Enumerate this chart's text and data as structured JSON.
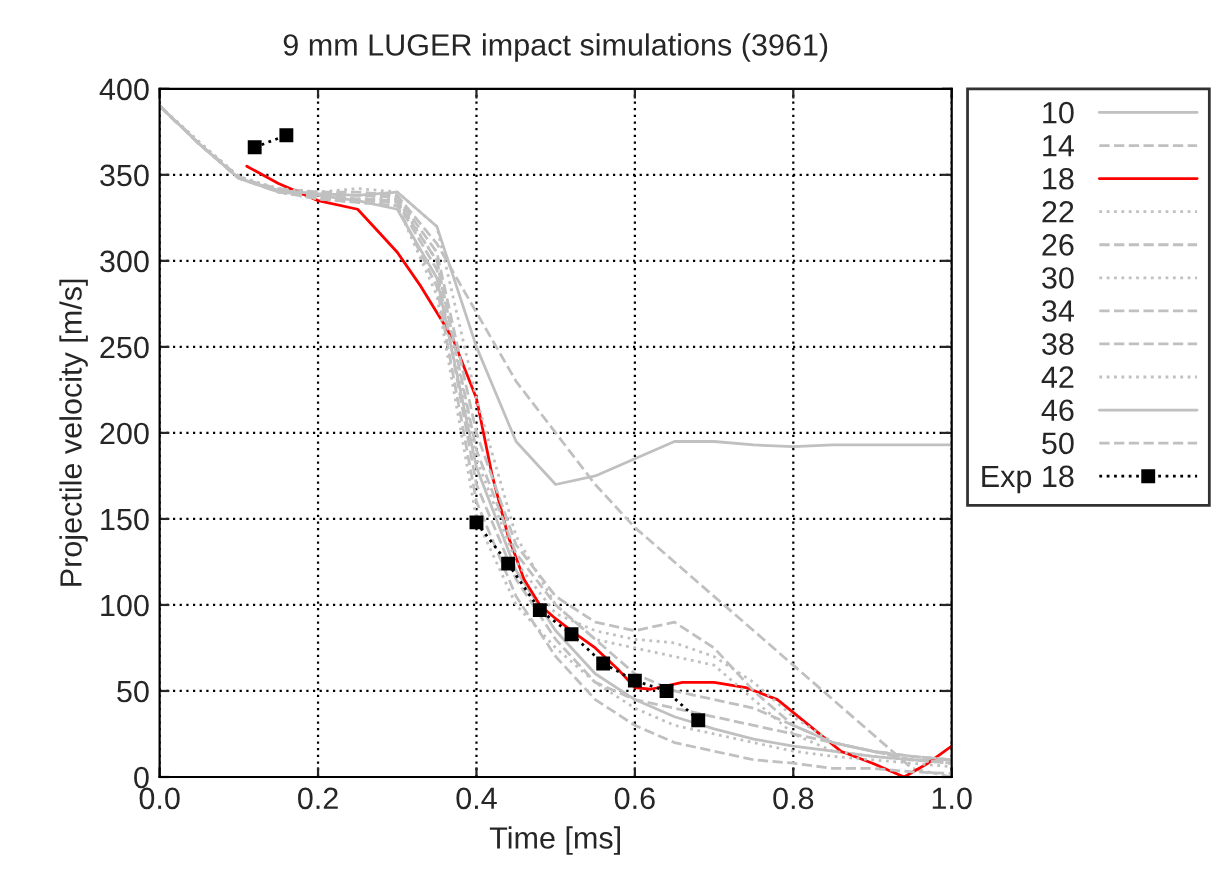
{
  "chart_data": {
    "type": "line",
    "title": "9 mm LUGER impact simulations (3961)",
    "xlabel": "Time [ms]",
    "ylabel": "Projectile velocity [m/s]",
    "xlim": [
      0,
      1
    ],
    "ylim": [
      0,
      400
    ],
    "xticks": [
      {
        "value": 0,
        "label": "0.0"
      },
      0.2,
      0.4,
      0.6,
      0.8,
      {
        "value": 1,
        "label": "1.0"
      }
    ],
    "yticks": [
      0,
      50,
      100,
      150,
      200,
      250,
      300,
      350,
      400
    ],
    "grid": true,
    "legend": "right",
    "x": [
      0,
      0.05,
      0.1,
      0.15,
      0.2,
      0.25,
      0.3,
      0.35,
      0.4,
      0.45,
      0.5,
      0.55,
      0.6,
      0.65,
      0.7,
      0.75,
      0.8,
      0.85,
      0.9,
      0.95,
      1.0
    ],
    "series": [
      {
        "name": "10",
        "color": "#c0c0c0",
        "line_style": "solid",
        "values": [
          390,
          368,
          348,
          340,
          338,
          335,
          330,
          290,
          180,
          120,
          85,
          60,
          45,
          35,
          28,
          22,
          18,
          15,
          12,
          10,
          10
        ]
      },
      {
        "name": "14",
        "color": "#c0c0c0",
        "line_style": "dashed",
        "values": [
          390,
          368,
          348,
          342,
          340,
          340,
          338,
          310,
          270,
          230,
          200,
          170,
          145,
          125,
          105,
          85,
          65,
          45,
          25,
          5,
          0
        ]
      },
      {
        "name": "18",
        "color": "#ff0000",
        "line_style": "solid",
        "x": [
          0.11,
          0.15,
          0.2,
          0.25,
          0.28,
          0.3,
          0.33,
          0.35,
          0.37,
          0.4,
          0.42,
          0.44,
          0.46,
          0.48,
          0.5,
          0.52,
          0.55,
          0.58,
          0.6,
          0.62,
          0.66,
          0.7,
          0.74,
          0.78,
          0.82,
          0.86,
          0.9,
          0.94,
          0.97,
          1.0
        ],
        "values": [
          355,
          345,
          335,
          330,
          315,
          305,
          285,
          270,
          255,
          220,
          175,
          140,
          115,
          100,
          92,
          85,
          75,
          62,
          52,
          51,
          55,
          55,
          52,
          45,
          30,
          15,
          8,
          0,
          8,
          18
        ]
      },
      {
        "name": "22",
        "color": "#c0c0c0",
        "line_style": "dotted",
        "values": [
          390,
          369,
          349,
          340,
          336,
          334,
          332,
          280,
          150,
          100,
          75,
          55,
          40,
          30,
          25,
          20,
          15,
          12,
          10,
          8,
          6
        ]
      },
      {
        "name": "26",
        "color": "#c0c0c0",
        "line_style": "dashed",
        "values": [
          390,
          368,
          348,
          341,
          338,
          336,
          335,
          300,
          190,
          130,
          100,
          80,
          60,
          50,
          45,
          40,
          30,
          20,
          15,
          12,
          10
        ]
      },
      {
        "name": "30",
        "color": "#c0c0c0",
        "line_style": "dotted",
        "values": [
          390,
          369,
          349,
          342,
          340,
          342,
          340,
          320,
          220,
          140,
          100,
          80,
          75,
          70,
          65,
          45,
          25,
          15,
          12,
          10,
          8
        ]
      },
      {
        "name": "34",
        "color": "#c0c0c0",
        "line_style": "dashed",
        "values": [
          390,
          368,
          348,
          341,
          339,
          338,
          337,
          305,
          200,
          135,
          105,
          90,
          85,
          90,
          75,
          50,
          30,
          20,
          15,
          10,
          8
        ]
      },
      {
        "name": "38",
        "color": "#c0c0c0",
        "line_style": "dashed",
        "values": [
          390,
          368,
          349,
          340,
          337,
          335,
          334,
          295,
          170,
          115,
          80,
          55,
          45,
          40,
          35,
          30,
          25,
          20,
          15,
          12,
          10
        ]
      },
      {
        "name": "42",
        "color": "#c0c0c0",
        "line_style": "dotted",
        "values": [
          390,
          369,
          348,
          341,
          338,
          336,
          336,
          300,
          185,
          125,
          95,
          85,
          80,
          78,
          70,
          55,
          35,
          20,
          15,
          10,
          8
        ]
      },
      {
        "name": "46",
        "color": "#c0c0c0",
        "line_style": "solid",
        "values": [
          390,
          368,
          348,
          341,
          339,
          338,
          340,
          320,
          250,
          195,
          170,
          175,
          185,
          195,
          195,
          193,
          192,
          193,
          193,
          193,
          193
        ]
      },
      {
        "name": "50",
        "color": "#c0c0c0",
        "line_style": "dashed",
        "values": [
          390,
          368,
          348,
          340,
          336,
          334,
          332,
          285,
          160,
          105,
          70,
          45,
          30,
          20,
          15,
          10,
          8,
          5,
          5,
          3,
          2
        ]
      },
      {
        "name": "Exp 18",
        "color": "#000000",
        "line_style": "dotted",
        "marker": "square",
        "x": [
          0.12,
          0.16,
          0.28,
          0.4,
          0.44,
          0.48,
          0.52,
          0.56,
          0.6,
          0.64,
          0.68
        ],
        "values": [
          366,
          373,
          null,
          148,
          124,
          97,
          83,
          66,
          56,
          50,
          33
        ]
      }
    ]
  }
}
